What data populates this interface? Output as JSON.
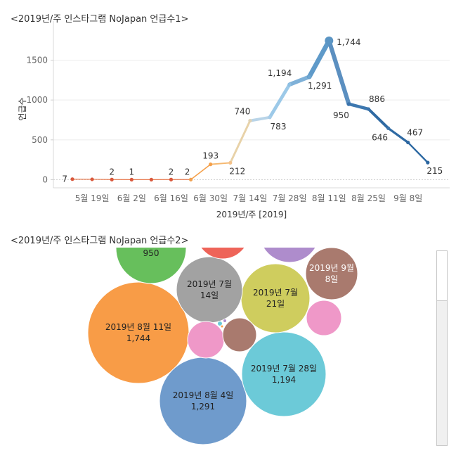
{
  "panels": {
    "line_title": "<2019년/주 인스타그램 NoJapan 언급수1>",
    "bubble_title": "<2019년/주 인스타그램 NoJapan 언급수2>"
  },
  "chart_data": [
    {
      "type": "line",
      "title": "<2019년/주 인스타그램 NoJapan 언급수1>",
      "xlabel": "2019년/주 [2019]",
      "ylabel": "언급수",
      "ylim": [
        0,
        1800
      ],
      "yticks": [
        0,
        500,
        1000,
        1500
      ],
      "grid": true,
      "xtick_labels": [
        "5월 19일",
        "6월 2일",
        "6월 16일",
        "6월 30일",
        "7월 14일",
        "7월 28일",
        "8월 11일",
        "8월 25일",
        "9월 8일"
      ],
      "x": [
        "2019-05-12",
        "2019-05-19",
        "2019-05-26",
        "2019-06-02",
        "2019-06-09",
        "2019-06-16",
        "2019-06-23",
        "2019-06-30",
        "2019-07-07",
        "2019-07-14",
        "2019-07-21",
        "2019-07-28",
        "2019-08-04",
        "2019-08-11",
        "2019-08-18",
        "2019-08-25",
        "2019-09-01",
        "2019-09-08",
        "2019-09-15"
      ],
      "values": [
        7,
        5,
        2,
        1,
        1,
        2,
        2,
        193,
        212,
        740,
        783,
        1194,
        1291,
        1744,
        950,
        886,
        646,
        467,
        215
      ],
      "data_labels": [
        "7",
        "",
        "2",
        "1",
        "",
        "2",
        "2",
        "193",
        "212",
        "740",
        "783",
        "1,194",
        "1,291",
        "1,744",
        "950",
        "886",
        "646",
        "467",
        "215"
      ],
      "colors": {
        "low": "#c0392b",
        "orange": "#f5a04a",
        "beige": "#e8d2a8",
        "light_blue": "#9cc9e8",
        "mid_blue": "#5b95c4",
        "dark_blue": "#2b66a0"
      }
    },
    {
      "type": "bubble",
      "title": "<2019년/주 인스타그램 NoJapan 언급수2>",
      "bubbles": [
        {
          "label": "2019년 8월 11일",
          "value": "1,744",
          "color": "#f89c47"
        },
        {
          "label": "2019년 8월 4일",
          "value": "1,291",
          "color": "#6f9bcc"
        },
        {
          "label": "2019년 7월 28일",
          "value": "1,194",
          "color": "#6ccad8"
        },
        {
          "label": "",
          "value": "950",
          "color": "#67bf5c"
        },
        {
          "label": "2019년 7월 21일",
          "value": "",
          "color": "#cfcd5e"
        },
        {
          "label": "2019년 7월 14일",
          "value": "",
          "color": "#a2a2a2"
        },
        {
          "label": "2019년 9월 8일",
          "value": "",
          "color": "#a97a6e"
        },
        {
          "label": "",
          "value": "",
          "color": "#ee6459"
        },
        {
          "label": "",
          "value": "",
          "color": "#ae8ccc"
        },
        {
          "label": "",
          "value": "",
          "color": "#ef98c8"
        },
        {
          "label": "",
          "value": "",
          "color": "#ef98c8"
        },
        {
          "label": "",
          "value": "",
          "color": "#a97a6e"
        },
        {
          "label": "",
          "value": "",
          "color": "#6ccad8"
        },
        {
          "label": "",
          "value": "",
          "color": "#ae8ccc"
        },
        {
          "label": "",
          "value": "",
          "color": "#f89c47"
        }
      ]
    }
  ]
}
